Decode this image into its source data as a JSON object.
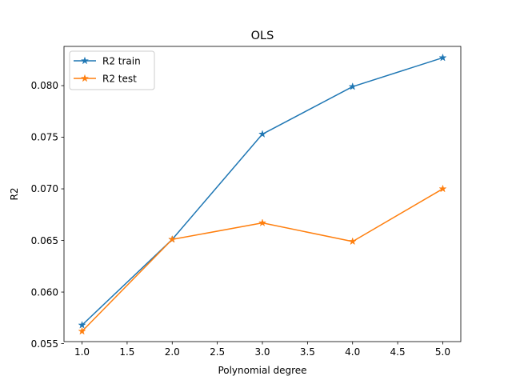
{
  "chart_data": {
    "type": "line",
    "title": "OLS",
    "xlabel": "Polynomial degree",
    "ylabel": "R2",
    "xlim": [
      0.8,
      5.2
    ],
    "ylim": [
      0.0552,
      0.0838
    ],
    "xticks": [
      "1.0",
      "1.5",
      "2.0",
      "2.5",
      "3.0",
      "3.5",
      "4.0",
      "4.5",
      "5.0"
    ],
    "yticks": [
      "0.055",
      "0.060",
      "0.065",
      "0.070",
      "0.075",
      "0.080"
    ],
    "grid": false,
    "legend_position": "upper-left",
    "x": [
      1,
      2,
      3,
      4,
      5
    ],
    "series": [
      {
        "name": "R2 train",
        "color": "#1f77b4",
        "marker": "star",
        "values": [
          0.0568,
          0.0651,
          0.0753,
          0.0799,
          0.0827
        ]
      },
      {
        "name": "R2 test",
        "color": "#ff7f0e",
        "marker": "star",
        "values": [
          0.0562,
          0.0651,
          0.0667,
          0.0649,
          0.07
        ]
      }
    ]
  }
}
